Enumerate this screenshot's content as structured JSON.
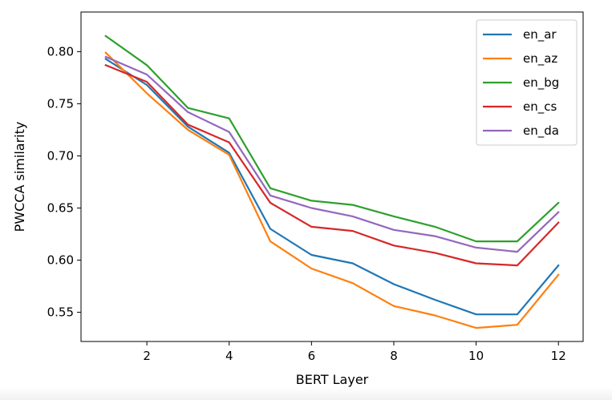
{
  "chart_data": {
    "type": "line",
    "title": "",
    "xlabel": "BERT Layer",
    "ylabel": "PWCCA similarity",
    "x": [
      1,
      2,
      3,
      4,
      5,
      6,
      7,
      8,
      9,
      10,
      11,
      12
    ],
    "xlim": [
      0.4,
      12.6
    ],
    "ylim": [
      0.522,
      0.838
    ],
    "xticks": [
      2,
      4,
      6,
      8,
      10,
      12
    ],
    "yticks": [
      0.55,
      0.6,
      0.65,
      0.7,
      0.75,
      0.8
    ],
    "ytick_labels": [
      "0.55",
      "0.60",
      "0.65",
      "0.70",
      "0.75",
      "0.80"
    ],
    "grid": false,
    "legend_position": "top-right",
    "series": [
      {
        "name": "en_ar",
        "color": "#1f77b4",
        "values": [
          0.793,
          0.768,
          0.728,
          0.703,
          0.63,
          0.605,
          0.597,
          0.577,
          0.562,
          0.548,
          0.548,
          0.595
        ]
      },
      {
        "name": "en_az",
        "color": "#ff7f0e",
        "values": [
          0.799,
          0.76,
          0.725,
          0.701,
          0.618,
          0.592,
          0.578,
          0.556,
          0.547,
          0.535,
          0.538,
          0.586
        ]
      },
      {
        "name": "en_bg",
        "color": "#2ca02c",
        "values": [
          0.815,
          0.787,
          0.746,
          0.736,
          0.669,
          0.657,
          0.653,
          0.642,
          0.632,
          0.618,
          0.618,
          0.655
        ]
      },
      {
        "name": "en_cs",
        "color": "#d62728",
        "values": [
          0.787,
          0.771,
          0.73,
          0.713,
          0.655,
          0.632,
          0.628,
          0.614,
          0.607,
          0.597,
          0.595,
          0.636
        ]
      },
      {
        "name": "en_da",
        "color": "#9467bd",
        "values": [
          0.795,
          0.778,
          0.742,
          0.723,
          0.662,
          0.65,
          0.642,
          0.629,
          0.623,
          0.612,
          0.608,
          0.646
        ]
      }
    ]
  }
}
